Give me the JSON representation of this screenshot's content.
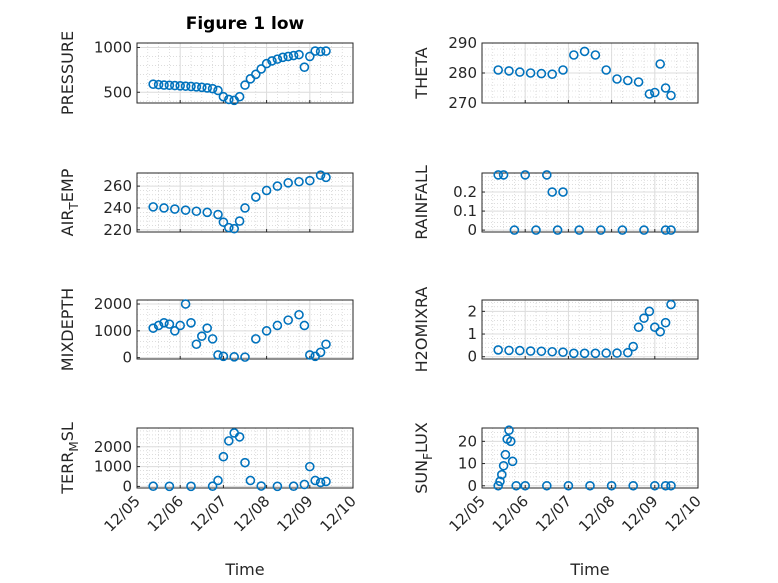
{
  "figure_title": "Figure 1 low",
  "colors": {
    "marker": "#0072BD",
    "axis": "#262626",
    "grid": "#c8c8c8",
    "background": "#ffffff"
  },
  "chart_data": [
    {
      "type": "scatter",
      "title": "Figure 1 low",
      "ylabel": "PRESSURE",
      "xlabel": "",
      "ylim": [
        380,
        1050
      ],
      "yticks": [
        500,
        1000
      ],
      "xlim": [
        "12/05",
        "12/10"
      ],
      "grid": "major-solid minor-dotted",
      "x": [
        "12/05 09:00",
        "12/05 12:00",
        "12/05 15:00",
        "12/05 18:00",
        "12/05 21:00",
        "12/06 00:00",
        "12/06 03:00",
        "12/06 06:00",
        "12/06 09:00",
        "12/06 12:00",
        "12/06 15:00",
        "12/06 18:00",
        "12/06 21:00",
        "12/07 00:00",
        "12/07 03:00",
        "12/07 06:00",
        "12/07 09:00",
        "12/07 12:00",
        "12/07 15:00",
        "12/07 18:00",
        "12/07 21:00",
        "12/08 00:00",
        "12/08 03:00",
        "12/08 06:00",
        "12/08 09:00",
        "12/08 12:00",
        "12/08 15:00",
        "12/08 18:00",
        "12/08 21:00",
        "12/09 00:00",
        "12/09 03:00",
        "12/09 06:00",
        "12/09 09:00"
      ],
      "values": [
        590,
        585,
        580,
        578,
        575,
        572,
        568,
        565,
        560,
        555,
        548,
        540,
        520,
        450,
        420,
        410,
        450,
        580,
        650,
        700,
        760,
        820,
        850,
        870,
        890,
        900,
        910,
        920,
        780,
        900,
        960,
        955,
        960
      ]
    },
    {
      "type": "scatter",
      "ylabel": "THETA",
      "ylim": [
        270,
        290
      ],
      "yticks": [
        270,
        280,
        290
      ],
      "xlim": [
        "12/05",
        "12/10"
      ],
      "grid": "major-solid minor-dotted",
      "x": [
        "12/05 09:00",
        "12/05 15:00",
        "12/05 21:00",
        "12/06 03:00",
        "12/06 09:00",
        "12/06 15:00",
        "12/06 21:00",
        "12/07 03:00",
        "12/07 09:00",
        "12/07 15:00",
        "12/07 21:00",
        "12/08 03:00",
        "12/08 09:00",
        "12/08 15:00",
        "12/08 21:00",
        "12/09 00:00",
        "12/09 03:00",
        "12/09 06:00",
        "12/09 09:00"
      ],
      "values": [
        281,
        280.7,
        280.3,
        280,
        279.8,
        279.6,
        281,
        286,
        287.2,
        286,
        281,
        278,
        277.5,
        277,
        273,
        273.5,
        283,
        275,
        272.5
      ]
    },
    {
      "type": "scatter",
      "ylabel": "AIR_TEMP",
      "ylim": [
        218,
        272
      ],
      "yticks": [
        220,
        240,
        260
      ],
      "xlim": [
        "12/05",
        "12/10"
      ],
      "grid": "major-solid minor-dotted",
      "x": [
        "12/05 09:00",
        "12/05 15:00",
        "12/05 21:00",
        "12/06 03:00",
        "12/06 09:00",
        "12/06 15:00",
        "12/06 21:00",
        "12/07 00:00",
        "12/07 03:00",
        "12/07 06:00",
        "12/07 09:00",
        "12/07 12:00",
        "12/07 18:00",
        "12/08 00:00",
        "12/08 06:00",
        "12/08 12:00",
        "12/08 18:00",
        "12/09 00:00",
        "12/09 06:00",
        "12/09 09:00"
      ],
      "values": [
        241,
        240,
        239,
        238,
        237,
        236,
        234,
        227,
        222,
        221,
        228,
        240,
        250,
        256,
        260,
        263,
        264,
        265,
        270,
        268
      ]
    },
    {
      "type": "scatter",
      "ylabel": "RAINFALL",
      "ylim": [
        -0.01,
        0.3
      ],
      "yticks": [
        0,
        0.1,
        0.2
      ],
      "xlim": [
        "12/05",
        "12/10"
      ],
      "grid": "major-solid minor-dotted",
      "x": [
        "12/05 09:00",
        "12/05 12:00",
        "12/05 18:00",
        "12/06 00:00",
        "12/06 06:00",
        "12/06 12:00",
        "12/06 15:00",
        "12/06 18:00",
        "12/06 21:00",
        "12/07 06:00",
        "12/07 18:00",
        "12/08 06:00",
        "12/08 18:00",
        "12/09 06:00",
        "12/09 09:00"
      ],
      "values": [
        0.29,
        0.29,
        0,
        0.29,
        0,
        0.29,
        0.2,
        0,
        0.2,
        0,
        0,
        0,
        0,
        0,
        0
      ]
    },
    {
      "type": "scatter",
      "ylabel": "MIXDEPTH",
      "ylim": [
        -50,
        2150
      ],
      "yticks": [
        0,
        1000,
        2000
      ],
      "xlim": [
        "12/05",
        "12/10"
      ],
      "grid": "major-solid minor-dotted",
      "x": [
        "12/05 09:00",
        "12/05 12:00",
        "12/05 15:00",
        "12/05 18:00",
        "12/05 21:00",
        "12/06 00:00",
        "12/06 03:00",
        "12/06 06:00",
        "12/06 09:00",
        "12/06 12:00",
        "12/06 15:00",
        "12/06 18:00",
        "12/06 21:00",
        "12/07 00:00",
        "12/07 06:00",
        "12/07 12:00",
        "12/07 18:00",
        "12/08 00:00",
        "12/08 06:00",
        "12/08 12:00",
        "12/08 18:00",
        "12/08 21:00",
        "12/09 00:00",
        "12/09 03:00",
        "12/09 06:00",
        "12/09 09:00"
      ],
      "values": [
        1100,
        1200,
        1300,
        1250,
        1000,
        1200,
        2000,
        1300,
        500,
        800,
        1100,
        700,
        100,
        50,
        30,
        20,
        700,
        1000,
        1200,
        1400,
        1600,
        1200,
        100,
        50,
        200,
        500
      ]
    },
    {
      "type": "scatter",
      "ylabel": "H2OMIXRA",
      "ylim": [
        -0.1,
        2.5
      ],
      "yticks": [
        0,
        1,
        2
      ],
      "xlim": [
        "12/05",
        "12/10"
      ],
      "grid": "major-solid minor-dotted",
      "x": [
        "12/05 09:00",
        "12/05 15:00",
        "12/05 21:00",
        "12/06 03:00",
        "12/06 09:00",
        "12/06 15:00",
        "12/06 21:00",
        "12/07 03:00",
        "12/07 09:00",
        "12/07 15:00",
        "12/07 21:00",
        "12/08 03:00",
        "12/08 09:00",
        "12/08 12:00",
        "12/08 15:00",
        "12/08 18:00",
        "12/08 21:00",
        "12/09 00:00",
        "12/09 03:00",
        "12/09 06:00",
        "12/09 09:00"
      ],
      "values": [
        0.3,
        0.28,
        0.27,
        0.25,
        0.24,
        0.22,
        0.2,
        0.15,
        0.15,
        0.15,
        0.16,
        0.16,
        0.18,
        0.45,
        1.3,
        1.7,
        2.0,
        1.3,
        1.1,
        1.5,
        2.3
      ]
    },
    {
      "type": "scatter",
      "ylabel": "TERR_MSL",
      "ylim": [
        -80,
        2950
      ],
      "yticks": [
        0,
        1000,
        2000
      ],
      "xlim": [
        "12/05",
        "12/10"
      ],
      "grid": "major-solid minor-dotted",
      "x": [
        "12/05 09:00",
        "12/05 18:00",
        "12/06 06:00",
        "12/06 18:00",
        "12/06 21:00",
        "12/07 00:00",
        "12/07 03:00",
        "12/07 06:00",
        "12/07 09:00",
        "12/07 12:00",
        "12/07 15:00",
        "12/07 21:00",
        "12/08 06:00",
        "12/08 15:00",
        "12/08 21:00",
        "12/09 00:00",
        "12/09 03:00",
        "12/09 06:00",
        "12/09 09:00"
      ],
      "values": [
        10,
        5,
        5,
        10,
        300,
        1500,
        2300,
        2700,
        2500,
        1200,
        300,
        20,
        5,
        10,
        100,
        1000,
        300,
        200,
        250
      ]
    },
    {
      "type": "scatter",
      "ylabel": "SUN_FLUX",
      "ylim": [
        -1,
        26
      ],
      "yticks": [
        0,
        10,
        20
      ],
      "xlim": [
        "12/05",
        "12/10"
      ],
      "grid": "major-solid minor-dotted",
      "x": [
        "12/05 09:00",
        "12/05 10:00",
        "12/05 11:00",
        "12/05 12:00",
        "12/05 13:00",
        "12/05 14:00",
        "12/05 15:00",
        "12/05 16:00",
        "12/05 17:00",
        "12/05 19:00",
        "12/06 00:00",
        "12/06 12:00",
        "12/07 00:00",
        "12/07 12:00",
        "12/08 00:00",
        "12/08 12:00",
        "12/09 00:00",
        "12/09 06:00",
        "12/09 09:00"
      ],
      "values": [
        0,
        2,
        5,
        9,
        14,
        21,
        25,
        20,
        11,
        0,
        0,
        0,
        0,
        0,
        0,
        0,
        0,
        0,
        0
      ]
    }
  ],
  "xticklabels": [
    "12/05",
    "12/06",
    "12/07",
    "12/08",
    "12/09",
    "12/10"
  ],
  "xaxis_label": "Time",
  "ylabel_parts": [
    {
      "main": "PRESSURE",
      "sub": "",
      "tail": ""
    },
    {
      "main": "THETA",
      "sub": "",
      "tail": ""
    },
    {
      "main": "AIR",
      "sub": "T",
      "tail": "EMP"
    },
    {
      "main": "RAINFALL",
      "sub": "",
      "tail": ""
    },
    {
      "main": "MIXDEPTH",
      "sub": "",
      "tail": ""
    },
    {
      "main": "H2OMIXRA",
      "sub": "",
      "tail": ""
    },
    {
      "main": "TERR",
      "sub": "M",
      "tail": "SL"
    },
    {
      "main": "SUN",
      "sub": "F",
      "tail": "LUX"
    }
  ]
}
